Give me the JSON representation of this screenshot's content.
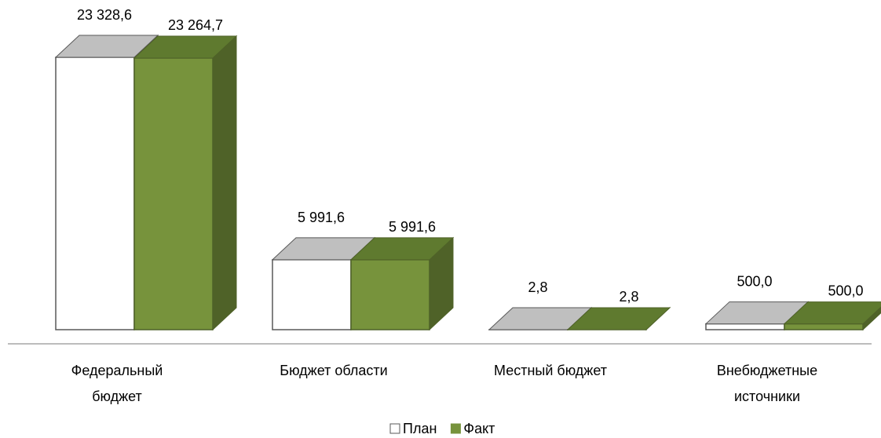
{
  "chart_data": {
    "type": "bar3d",
    "categories": [
      "Федеральный бюджет",
      "Бюджет области",
      "Местный бюджет",
      "Внебюджетные источники"
    ],
    "series": [
      {
        "name": "План",
        "color": "#ffffff",
        "values": [
          23328.6,
          5991.6,
          2.8,
          500.0
        ],
        "value_labels": [
          "23 328,6",
          "5 991,6",
          "2,8",
          "500,0"
        ]
      },
      {
        "name": "Факт",
        "color": "#77933c",
        "values": [
          23264.7,
          5991.6,
          2.8,
          500.0
        ],
        "value_labels": [
          "23 264,7",
          "5 991,6",
          "2,8",
          "500,0"
        ]
      }
    ],
    "legend": "bottom"
  }
}
